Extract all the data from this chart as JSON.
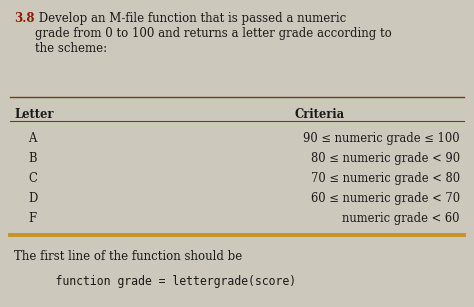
{
  "title_bold": "3.8",
  "title_rest": " Develop an M-file function that is passed a numeric\ngrade from 0 to 100 and returns a letter grade according to\nthe scheme:",
  "col_letter": "Letter",
  "col_criteria": "Criteria",
  "letters": [
    "A",
    "B",
    "C",
    "D",
    "F"
  ],
  "criteria": [
    "90 ≤ numeric grade ≤ 100",
    "80 ≤ numeric grade < 90",
    "70 ≤ numeric grade < 80",
    "60 ≤ numeric grade < 70",
    "numeric grade < 60"
  ],
  "footer_text": "The first line of the function should be",
  "code_text": "    function grade = lettergrade(score)",
  "bg_color": "#cdc8bc",
  "text_color": "#1a1a1a",
  "bold_color": "#8B1a00",
  "line_dark": "#7a3a1a",
  "line_gold": "#c8922a",
  "title_fontsize": 8.5,
  "table_fontsize": 8.3,
  "footer_fontsize": 8.5,
  "code_fontsize": 8.3
}
